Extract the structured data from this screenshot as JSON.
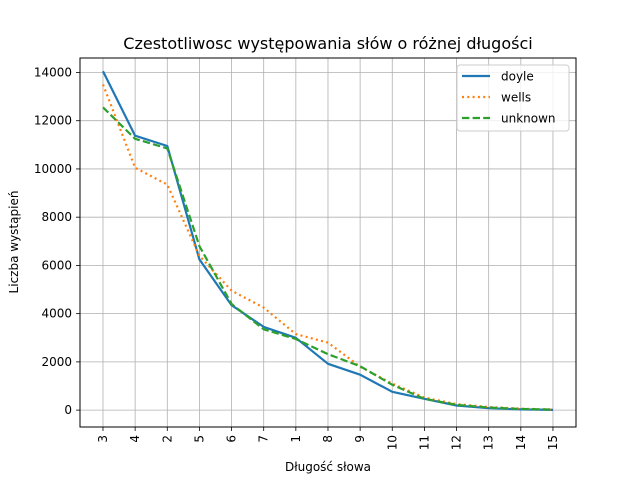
{
  "chart_data": {
    "type": "line",
    "title": "Czestotliwosc występowania słów o różnej długości",
    "xlabel": "Długość słowa",
    "ylabel": "Liczba wystąpień",
    "categories": [
      "3",
      "4",
      "2",
      "5",
      "6",
      "7",
      "1",
      "8",
      "9",
      "10",
      "11",
      "12",
      "13",
      "14",
      "15"
    ],
    "ylim": [
      -700,
      14600
    ],
    "yticks": [
      0,
      2000,
      4000,
      6000,
      8000,
      10000,
      12000,
      14000
    ],
    "grid": true,
    "legend_position": "top-right",
    "series": [
      {
        "name": "doyle",
        "color": "#1f77b4",
        "dash": "solid",
        "values": [
          14050,
          11380,
          10950,
          6250,
          4350,
          3450,
          3000,
          1920,
          1470,
          760,
          470,
          190,
          80,
          30,
          10
        ]
      },
      {
        "name": "wells",
        "color": "#ff7f0e",
        "dash": "dotted",
        "values": [
          13500,
          10050,
          9350,
          6400,
          4950,
          4250,
          3150,
          2800,
          1800,
          1100,
          520,
          250,
          130,
          60,
          20
        ]
      },
      {
        "name": "unknown",
        "color": "#2ca02c",
        "dash": "dashed",
        "values": [
          12550,
          11250,
          10850,
          6800,
          4400,
          3350,
          2950,
          2320,
          1820,
          1050,
          470,
          220,
          110,
          50,
          20
        ]
      }
    ]
  }
}
